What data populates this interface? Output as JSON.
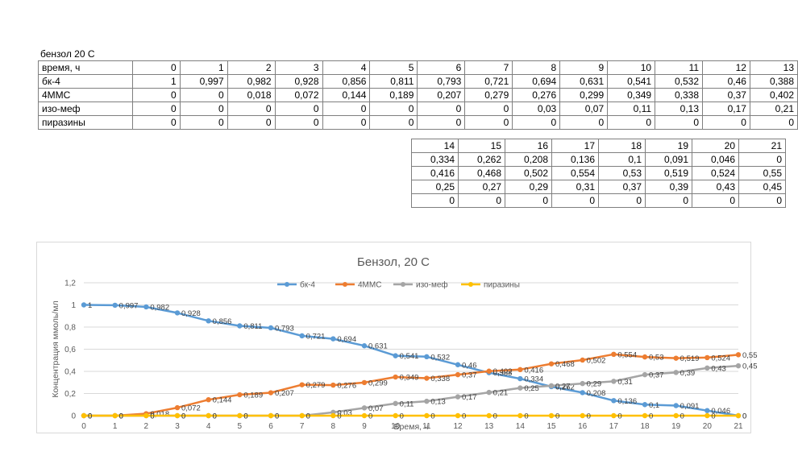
{
  "sheet": {
    "caption": "бензол 20 С",
    "header_label": "время, ч",
    "times_part1": [
      0,
      1,
      2,
      3,
      4,
      5,
      6,
      7,
      8,
      9,
      10,
      11,
      12,
      13
    ],
    "rows_part1": [
      {
        "label": "бк-4",
        "values": [
          "1",
          "0,997",
          "0,982",
          "0,928",
          "0,856",
          "0,811",
          "0,793",
          "0,721",
          "0,694",
          "0,631",
          "0,541",
          "0,532",
          "0,46",
          "0,388"
        ]
      },
      {
        "label": "4ММС",
        "values": [
          "0",
          "0",
          "0,018",
          "0,072",
          "0,144",
          "0,189",
          "0,207",
          "0,279",
          "0,276",
          "0,299",
          "0,349",
          "0,338",
          "0,37",
          "0,402"
        ]
      },
      {
        "label": "изо-меф",
        "values": [
          "0",
          "0",
          "0",
          "0",
          "0",
          "0",
          "0",
          "0",
          "0,03",
          "0,07",
          "0,11",
          "0,13",
          "0,17",
          "0,21"
        ]
      },
      {
        "label": "пиразины",
        "values": [
          "0",
          "0",
          "0",
          "0",
          "0",
          "0",
          "0",
          "0",
          "0",
          "0",
          "0",
          "0",
          "0",
          "0"
        ]
      }
    ],
    "times_part2": [
      14,
      15,
      16,
      17,
      18,
      19,
      20,
      21
    ],
    "rows_part2": [
      {
        "values": [
          "0,334",
          "0,262",
          "0,208",
          "0,136",
          "0,1",
          "0,091",
          "0,046",
          "0"
        ]
      },
      {
        "values": [
          "0,416",
          "0,468",
          "0,502",
          "0,554",
          "0,53",
          "0,519",
          "0,524",
          "0,55"
        ]
      },
      {
        "values": [
          "0,25",
          "0,27",
          "0,29",
          "0,31",
          "0,37",
          "0,39",
          "0,43",
          "0,45"
        ]
      },
      {
        "values": [
          "0",
          "0",
          "0",
          "0",
          "0",
          "0",
          "0",
          "0"
        ]
      }
    ]
  },
  "chart_data": {
    "type": "line",
    "title": "Бензол, 20 С",
    "xlabel": "Время, ч",
    "ylabel": "Концентрация ммоль/мл",
    "x": [
      0,
      1,
      2,
      3,
      4,
      5,
      6,
      7,
      8,
      9,
      10,
      11,
      12,
      13,
      14,
      15,
      16,
      17,
      18,
      19,
      20,
      21
    ],
    "xlim": [
      0,
      21
    ],
    "ylim": [
      0,
      1.2
    ],
    "yticks": [
      "0",
      "0,2",
      "0,4",
      "0,6",
      "0,8",
      "1",
      "1,2"
    ],
    "grid": "horizontal",
    "legend_position": "top",
    "series": [
      {
        "name": "бк-4",
        "color": "#5b9bd5",
        "values": [
          1,
          0.997,
          0.982,
          0.928,
          0.856,
          0.811,
          0.793,
          0.721,
          0.694,
          0.631,
          0.541,
          0.532,
          0.46,
          0.388,
          0.334,
          0.262,
          0.208,
          0.136,
          0.1,
          0.091,
          0.046,
          0
        ],
        "labels": [
          "1",
          "0,997",
          "0,982",
          "0,928",
          "0,856",
          "0,811",
          "0,793",
          "0,721",
          "0,694",
          "0,631",
          "0,541",
          "0,532",
          "0,46",
          "0,388",
          "0,334",
          "0,262",
          "0,208",
          "0,136",
          "0,1",
          "0,091",
          "0,046",
          "0"
        ]
      },
      {
        "name": "4ММС",
        "color": "#ed7d31",
        "values": [
          0,
          0,
          0.018,
          0.072,
          0.144,
          0.189,
          0.207,
          0.279,
          0.276,
          0.299,
          0.349,
          0.338,
          0.37,
          0.402,
          0.416,
          0.468,
          0.502,
          0.554,
          0.53,
          0.519,
          0.524,
          0.55
        ],
        "labels": [
          "0",
          "0",
          "0,018",
          "0,072",
          "0,144",
          "0,189",
          "0,207",
          "0,279",
          "0,276",
          "0,299",
          "0,349",
          "0,338",
          "0,37",
          "0,402",
          "0,416",
          "0,468",
          "0,502",
          "0,554",
          "0,53",
          "0,519",
          "0,524",
          "0,55"
        ]
      },
      {
        "name": "изо-меф",
        "color": "#a5a5a5",
        "values": [
          0,
          0,
          0,
          0,
          0,
          0,
          0,
          0,
          0.03,
          0.07,
          0.11,
          0.13,
          0.17,
          0.21,
          0.25,
          0.27,
          0.29,
          0.31,
          0.37,
          0.39,
          0.43,
          0.45
        ],
        "labels": [
          "0",
          "0",
          "0",
          "0",
          "0",
          "0",
          "0",
          "0",
          "0,03",
          "0,07",
          "0,11",
          "0,13",
          "0,17",
          "0,21",
          "0,25",
          "0,27",
          "0,29",
          "0,31",
          "0,37",
          "0,39",
          "0,43",
          "0,45"
        ]
      },
      {
        "name": "пиразины",
        "color": "#ffc000",
        "values": [
          0,
          0,
          0,
          0,
          0,
          0,
          0,
          0,
          0,
          0,
          0,
          0,
          0,
          0,
          0,
          0,
          0,
          0,
          0,
          0,
          0,
          0
        ],
        "labels": [
          "0",
          "0",
          "0",
          "0",
          "0",
          "0",
          "0",
          "0",
          "0",
          "0",
          "0",
          "0",
          "0",
          "0",
          "0",
          "0",
          "0",
          "0",
          "0",
          "0",
          "0",
          "0"
        ]
      }
    ]
  }
}
